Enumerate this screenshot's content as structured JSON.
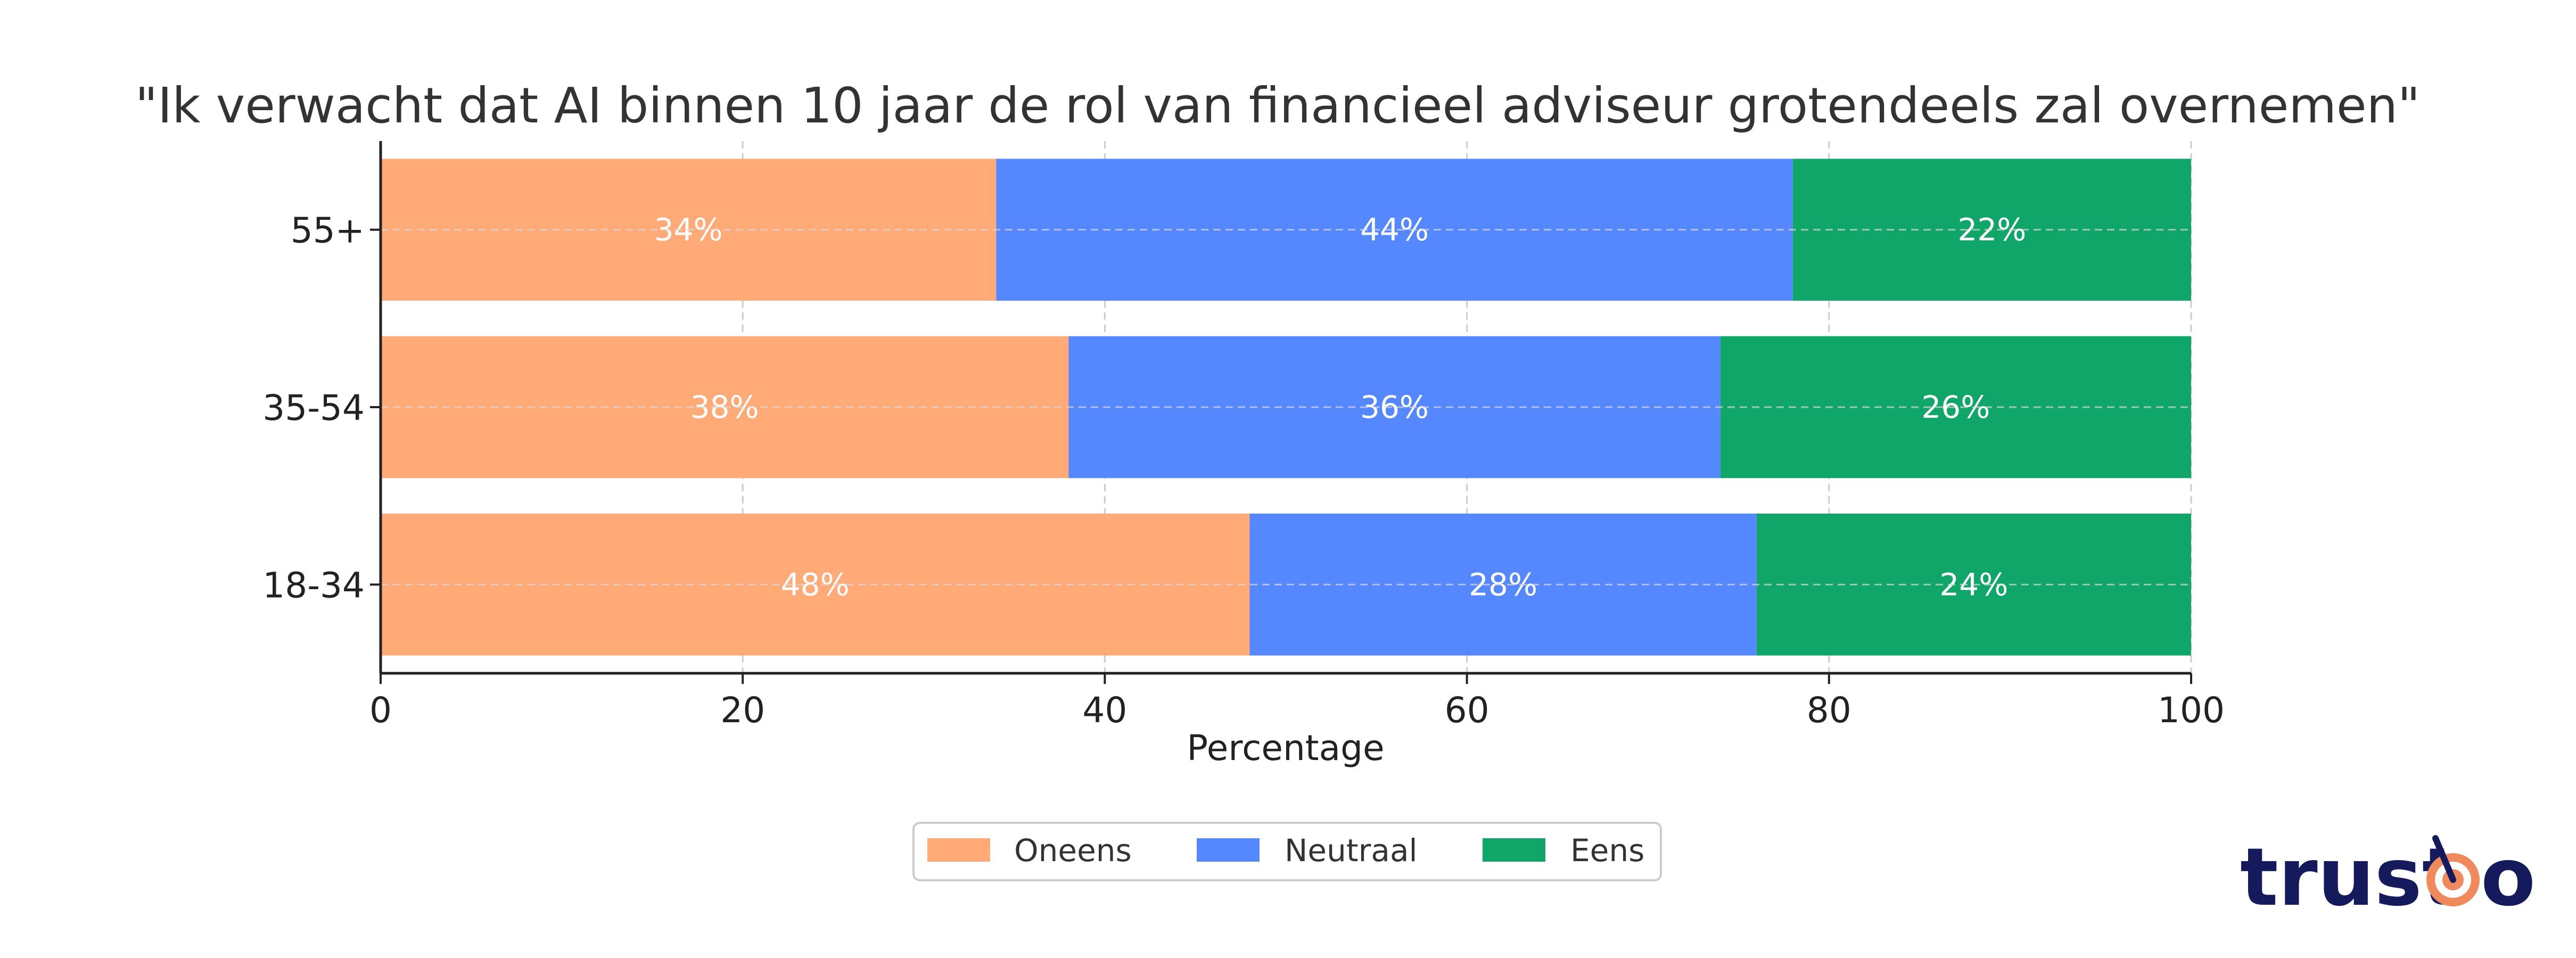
{
  "chart_data": {
    "type": "bar",
    "orientation": "horizontal",
    "stacked": true,
    "title": "\"Ik verwacht dat AI binnen 10 jaar de rol van financieel adviseur grotendeels zal overnemen\"",
    "xlabel": "Percentage",
    "ylabel": "",
    "xlim": [
      0,
      100
    ],
    "xticks": [
      0,
      20,
      40,
      60,
      80,
      100
    ],
    "categories": [
      "18-34",
      "35-54",
      "55+"
    ],
    "series": [
      {
        "name": "Oneens",
        "values": [
          48,
          38,
          34
        ],
        "labels": [
          "48%",
          "38%",
          "34%"
        ],
        "color": "#ffaa77"
      },
      {
        "name": "Neutraal",
        "values": [
          28,
          36,
          44
        ],
        "labels": [
          "28%",
          "36%",
          "44%"
        ],
        "color": "#5588ff"
      },
      {
        "name": "Eens",
        "values": [
          24,
          26,
          22
        ],
        "labels": [
          "24%",
          "26%",
          "22%"
        ],
        "color": "#10a66a"
      }
    ],
    "grid": true,
    "legend_position": "bottom-center"
  },
  "brand": {
    "text_before": "trust",
    "text_after": "o",
    "color": "#151a5c",
    "accent": "#f08a5d"
  }
}
